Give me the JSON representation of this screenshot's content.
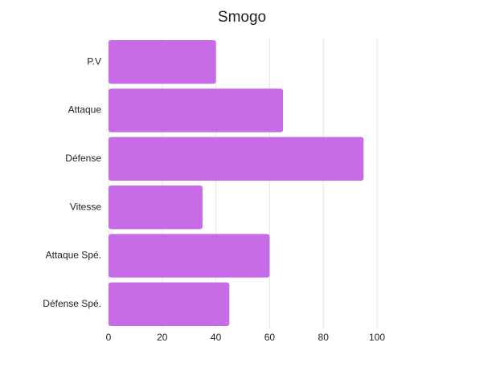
{
  "chart_data": {
    "type": "hbar",
    "title": "Smogo",
    "categories": [
      "P.V",
      "Attaque",
      "Défense",
      "Vitesse",
      "Attaque Spé.",
      "Défense Spé."
    ],
    "values": [
      40,
      65,
      95,
      35,
      60,
      45
    ],
    "color": "#c86be6",
    "xlim": [
      0,
      100
    ],
    "xticks": [
      0,
      20,
      40,
      60,
      80,
      100
    ],
    "grid": true
  }
}
